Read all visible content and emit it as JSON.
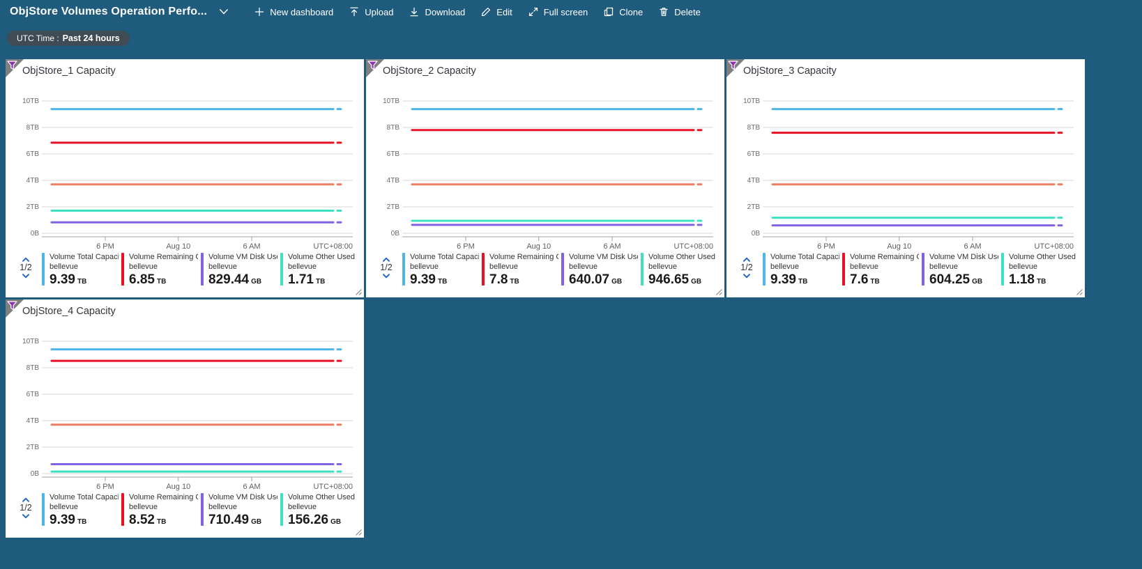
{
  "topbar": {
    "title": "ObjStore Volumes Operation Perfo...",
    "actions": [
      {
        "id": "new-dashboard",
        "label": "New dashboard",
        "icon": "plus"
      },
      {
        "id": "upload",
        "label": "Upload",
        "icon": "upload"
      },
      {
        "id": "download",
        "label": "Download",
        "icon": "download"
      },
      {
        "id": "edit",
        "label": "Edit",
        "icon": "edit"
      },
      {
        "id": "full-screen",
        "label": "Full screen",
        "icon": "fullscreen"
      },
      {
        "id": "clone",
        "label": "Clone",
        "icon": "clone"
      },
      {
        "id": "delete",
        "label": "Delete",
        "icon": "delete"
      }
    ]
  },
  "filter_pill": {
    "prefix": "UTC Time :",
    "value": "Past 24 hours"
  },
  "colors": {
    "page_bg": "#1f5b7d",
    "pill_bg": "#3f4c55",
    "tile_bg": "#ffffff",
    "blue": "#4db5e8",
    "red": "#e81123",
    "orange": "#ec7e63",
    "teal": "#3ee0c2",
    "purple": "#8262e0",
    "pager_chevron": "#2667c1",
    "gridline": "#d8d6d4",
    "axisline": "#a19f9d"
  },
  "chart_axis": {
    "y_ticks": [
      "10TB",
      "8TB",
      "6TB",
      "4TB",
      "2TB",
      "0B"
    ],
    "y_max_tb": 10,
    "x_ticks": [
      "6 PM",
      "Aug 10",
      "6 AM"
    ],
    "tz_label": "UTC+08:00"
  },
  "tiles": [
    {
      "title": "ObjStore_1 Capacity",
      "pager": "1/2",
      "lines": [
        {
          "series": "volume-total-capacity",
          "color": "#4db5e8",
          "tb": 9.39
        },
        {
          "series": "volume-remaining-capacity",
          "color": "#e81123",
          "tb": 6.85
        },
        {
          "series": "volume-series-5",
          "color": "#ec7e63",
          "tb": 3.7
        },
        {
          "series": "volume-other-used-capacity",
          "color": "#3ee0c2",
          "tb": 1.71
        },
        {
          "series": "volume-vm-disk-used",
          "color": "#8262e0",
          "tb": 0.83
        }
      ],
      "legend": [
        {
          "label": "Volume Total Capacit...",
          "resource": "bellevue",
          "value": "9.39",
          "unit": "TB",
          "color": "#4db5e8"
        },
        {
          "label": "Volume Remaining Cap...",
          "resource": "bellevue",
          "value": "6.85",
          "unit": "TB",
          "color": "#e81123"
        },
        {
          "label": "Volume VM Disk Used ...",
          "resource": "bellevue",
          "value": "829.44",
          "unit": "GB",
          "color": "#8262e0"
        },
        {
          "label": "Volume Other Used Ca...",
          "resource": "bellevue",
          "value": "1.71",
          "unit": "TB",
          "color": "#3ee0c2"
        }
      ]
    },
    {
      "title": "ObjStore_2 Capacity",
      "pager": "1/2",
      "lines": [
        {
          "series": "volume-total-capacity",
          "color": "#4db5e8",
          "tb": 9.39
        },
        {
          "series": "volume-remaining-capacity",
          "color": "#e81123",
          "tb": 7.8
        },
        {
          "series": "volume-series-5",
          "color": "#ec7e63",
          "tb": 3.7
        },
        {
          "series": "volume-other-used-capacity",
          "color": "#3ee0c2",
          "tb": 0.95
        },
        {
          "series": "volume-vm-disk-used",
          "color": "#8262e0",
          "tb": 0.64
        }
      ],
      "legend": [
        {
          "label": "Volume Total Capacit...",
          "resource": "bellevue",
          "value": "9.39",
          "unit": "TB",
          "color": "#4db5e8"
        },
        {
          "label": "Volume Remaining Cap...",
          "resource": "bellevue",
          "value": "7.8",
          "unit": "TB",
          "color": "#e81123"
        },
        {
          "label": "Volume VM Disk Used ...",
          "resource": "bellevue",
          "value": "640.07",
          "unit": "GB",
          "color": "#8262e0"
        },
        {
          "label": "Volume Other Used Ca...",
          "resource": "bellevue",
          "value": "946.65",
          "unit": "GB",
          "color": "#3ee0c2"
        }
      ]
    },
    {
      "title": "ObjStore_3 Capacity",
      "pager": "1/2",
      "lines": [
        {
          "series": "volume-total-capacity",
          "color": "#4db5e8",
          "tb": 9.39
        },
        {
          "series": "volume-remaining-capacity",
          "color": "#e81123",
          "tb": 7.6
        },
        {
          "series": "volume-series-5",
          "color": "#ec7e63",
          "tb": 3.7
        },
        {
          "series": "volume-other-used-capacity",
          "color": "#3ee0c2",
          "tb": 1.18
        },
        {
          "series": "volume-vm-disk-used",
          "color": "#8262e0",
          "tb": 0.6
        }
      ],
      "legend": [
        {
          "label": "Volume Total Capacit...",
          "resource": "bellevue",
          "value": "9.39",
          "unit": "TB",
          "color": "#4db5e8"
        },
        {
          "label": "Volume Remaining Cap...",
          "resource": "bellevue",
          "value": "7.6",
          "unit": "TB",
          "color": "#e81123"
        },
        {
          "label": "Volume VM Disk Used ...",
          "resource": "bellevue",
          "value": "604.25",
          "unit": "GB",
          "color": "#8262e0"
        },
        {
          "label": "Volume Other Used Ca...",
          "resource": "bellevue",
          "value": "1.18",
          "unit": "TB",
          "color": "#3ee0c2"
        }
      ]
    },
    {
      "title": "ObjStore_4 Capacity",
      "pager": "1/2",
      "lines": [
        {
          "series": "volume-total-capacity",
          "color": "#4db5e8",
          "tb": 9.39
        },
        {
          "series": "volume-remaining-capacity",
          "color": "#e81123",
          "tb": 8.52
        },
        {
          "series": "volume-series-5",
          "color": "#ec7e63",
          "tb": 3.7
        },
        {
          "series": "volume-vm-disk-used",
          "color": "#8262e0",
          "tb": 0.71
        },
        {
          "series": "volume-other-used-capacity",
          "color": "#3ee0c2",
          "tb": 0.153
        }
      ],
      "legend": [
        {
          "label": "Volume Total Capacit...",
          "resource": "bellevue",
          "value": "9.39",
          "unit": "TB",
          "color": "#4db5e8"
        },
        {
          "label": "Volume Remaining Cap...",
          "resource": "bellevue",
          "value": "8.52",
          "unit": "TB",
          "color": "#e81123"
        },
        {
          "label": "Volume VM Disk Used ...",
          "resource": "bellevue",
          "value": "710.49",
          "unit": "GB",
          "color": "#8262e0"
        },
        {
          "label": "Volume Other Used Ca...",
          "resource": "bellevue",
          "value": "156.26",
          "unit": "GB",
          "color": "#3ee0c2"
        }
      ]
    }
  ]
}
